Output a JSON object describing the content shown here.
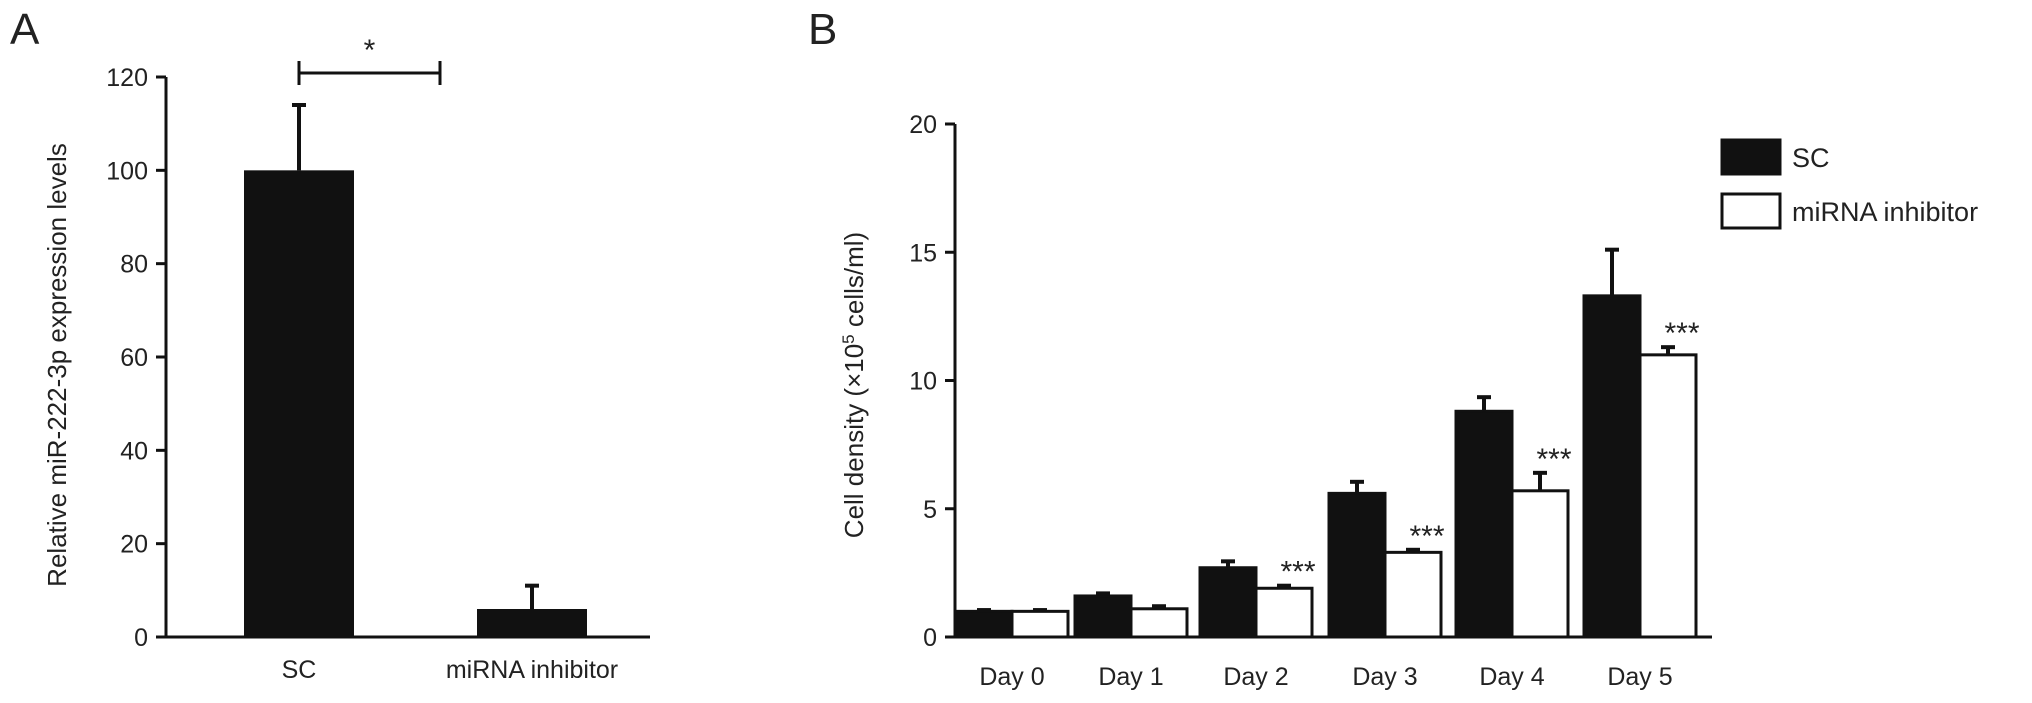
{
  "panels": {
    "A": {
      "letter": "A"
    },
    "B": {
      "letter": "B"
    }
  },
  "chart_data": [
    {
      "type": "bar",
      "panel": "A",
      "categories": [
        "SC",
        "miRNA inhibitor"
      ],
      "values": [
        100,
        6
      ],
      "errors": [
        14,
        5
      ],
      "ylabel": "Relative miR-222-3p expression levels",
      "ylim": [
        0,
        120
      ],
      "yticks": [
        "0",
        "20",
        "40",
        "60",
        "80",
        "100",
        "120"
      ],
      "bar_color": "#111111",
      "significance": {
        "between": [
          "SC",
          "miRNA inhibitor"
        ],
        "label": "*"
      },
      "grid": false
    },
    {
      "type": "bar",
      "panel": "B",
      "categories": [
        "Day 0",
        "Day 1",
        "Day 2",
        "Day 3",
        "Day 4",
        "Day 5"
      ],
      "series": [
        {
          "name": "SC",
          "color": "#111111",
          "values": [
            1.0,
            1.6,
            2.7,
            5.6,
            8.8,
            13.3
          ],
          "errors": [
            0.05,
            0.1,
            0.25,
            0.45,
            0.55,
            1.8
          ]
        },
        {
          "name": "miRNA inhibitor",
          "color": "#ffffff",
          "values": [
            1.0,
            1.1,
            1.9,
            3.3,
            5.7,
            11.0
          ],
          "errors": [
            0.05,
            0.1,
            0.1,
            0.1,
            0.7,
            0.3
          ]
        }
      ],
      "significance_labels": [
        "",
        "",
        "***",
        "***",
        "***",
        "***"
      ],
      "ylabel": "Cell density (×10",
      "ylabel_superscript": "5",
      "ylabel_suffix": " cells/ml)",
      "ylim": [
        0,
        20
      ],
      "yticks": [
        "0",
        "5",
        "10",
        "15",
        "20"
      ],
      "legend": "top-right",
      "grid": false
    }
  ]
}
